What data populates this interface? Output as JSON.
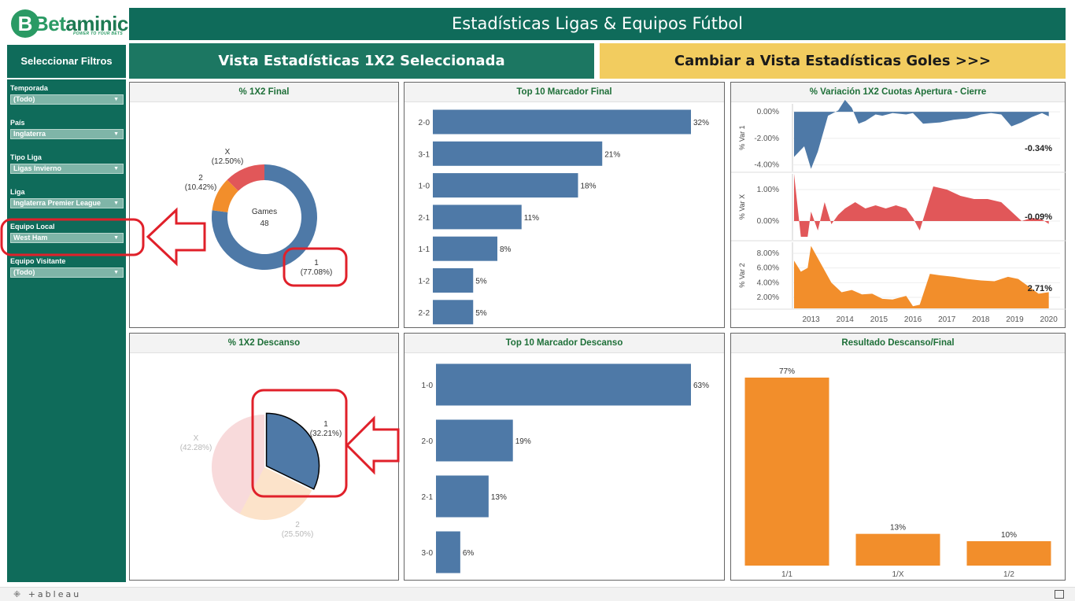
{
  "brand": {
    "name_prefix": "Bet",
    "name_suffix": "aminic",
    "tagline": "POWER TO YOUR BETS",
    "colors": {
      "primary": "#0f6b5a",
      "accent": "#f2cc5f",
      "blue": "#4e79a7",
      "orange": "#f28e2b",
      "red": "#e15759"
    }
  },
  "header": {
    "title": "Estadísticas Ligas & Equipos Fútbol"
  },
  "sidebar": {
    "heading": "Seleccionar Filtros",
    "filters": [
      {
        "label": "Temporada",
        "value": "(Todo)"
      },
      {
        "label": "País",
        "value": "Inglaterra"
      },
      {
        "label": "Tipo Liga",
        "value": "Ligas Invierno"
      },
      {
        "label": "Liga",
        "value": "Inglaterra Premier League"
      },
      {
        "label": "Equipo Local",
        "value": "West Ham"
      },
      {
        "label": "Equipo Visitante",
        "value": "(Todo)"
      }
    ]
  },
  "view_buttons": {
    "current": "Vista Estadísticas 1X2 Seleccionada",
    "switch": "Cambiar a Vista Estadísticas Goles >>>"
  },
  "panels": {
    "final_1x2_title": "% 1X2 Final",
    "top10_final_title": "Top 10 Marcador Final",
    "variation_title": "% Variación 1X2 Cuotas Apertura - Cierre",
    "halftime_1x2_title": "% 1X2 Descanso",
    "top10_halftime_title": "Top 10 Marcador Descanso",
    "ht_ft_title": "Resultado Descanso/Final"
  },
  "footer": {
    "product": "+ableau"
  },
  "chart_data": [
    {
      "id": "final_1x2",
      "type": "pie",
      "title": "% 1X2 Final",
      "center_label": "Games",
      "center_value": "48",
      "slices": [
        {
          "name": "1",
          "value": 77.08,
          "label": "(77.08%)",
          "color": "#4e79a7"
        },
        {
          "name": "2",
          "value": 10.42,
          "label": "(10.42%)",
          "color": "#f28e2b"
        },
        {
          "name": "X",
          "value": 12.5,
          "label": "(12.50%)",
          "color": "#e15759"
        }
      ]
    },
    {
      "id": "top10_final",
      "type": "bar",
      "title": "Top 10 Marcador Final",
      "categories": [
        "2-0",
        "3-1",
        "1-0",
        "2-1",
        "1-1",
        "1-2",
        "2-2"
      ],
      "values": [
        32,
        21,
        18,
        11,
        8,
        5,
        5
      ],
      "value_labels": [
        "32%",
        "21%",
        "18%",
        "11%",
        "8%",
        "5%",
        "5%"
      ],
      "xlim": [
        0,
        32
      ]
    },
    {
      "id": "variation",
      "type": "area",
      "title": "% Variación 1X2 Cuotas Apertura - Cierre",
      "x_ticks": [
        "2013",
        "2014",
        "2015",
        "2016",
        "2017",
        "2018",
        "2019",
        "2020"
      ],
      "xlim": [
        2012.5,
        2020.1
      ],
      "series": [
        {
          "name": "% Var 1",
          "color": "#4e79a7",
          "ylim": [
            -4.5,
            0.6
          ],
          "y_ticks": [
            "0.00%",
            "-2.00%",
            "-4.00%"
          ],
          "y_tick_values": [
            0,
            -2,
            -4
          ],
          "last_label": "-0.34%",
          "x": [
            2012.5,
            2012.8,
            2013.0,
            2013.2,
            2013.5,
            2013.8,
            2014.0,
            2014.2,
            2014.4,
            2014.6,
            2014.9,
            2015.1,
            2015.4,
            2015.8,
            2016.0,
            2016.3,
            2016.8,
            2017.2,
            2017.6,
            2018.0,
            2018.3,
            2018.6,
            2018.9,
            2019.2,
            2019.5,
            2019.8,
            2020.0
          ],
          "y": [
            -3.4,
            -2.6,
            -4.3,
            -3.0,
            -0.3,
            0.1,
            0.9,
            0.3,
            -0.9,
            -0.7,
            -0.2,
            -0.3,
            -0.1,
            -0.2,
            -0.1,
            -0.9,
            -0.8,
            -0.6,
            -0.5,
            -0.2,
            -0.1,
            -0.2,
            -1.1,
            -0.8,
            -0.4,
            -0.1,
            -0.34
          ]
        },
        {
          "name": "% Var X",
          "color": "#e15759",
          "ylim": [
            -0.6,
            1.5
          ],
          "y_ticks": [
            "1.00%",
            "0.00%"
          ],
          "y_tick_values": [
            1,
            0
          ],
          "last_label": "-0.09%",
          "x": [
            2012.5,
            2012.7,
            2012.9,
            2013.0,
            2013.2,
            2013.4,
            2013.6,
            2013.8,
            2014.0,
            2014.3,
            2014.6,
            2014.9,
            2015.2,
            2015.5,
            2015.8,
            2016.0,
            2016.2,
            2016.4,
            2016.6,
            2017.0,
            2017.4,
            2017.8,
            2018.2,
            2018.6,
            2018.9,
            2019.2,
            2019.5,
            2019.8,
            2020.0
          ],
          "y": [
            1.5,
            -0.5,
            -0.5,
            0.3,
            -0.3,
            0.6,
            -0.1,
            0.2,
            0.4,
            0.6,
            0.4,
            0.5,
            0.4,
            0.5,
            0.4,
            0.1,
            -0.3,
            0.4,
            1.1,
            1.0,
            0.8,
            0.7,
            0.7,
            0.6,
            0.3,
            0.0,
            0.1,
            0.05,
            -0.09
          ]
        },
        {
          "name": "% Var 2",
          "color": "#f28e2b",
          "ylim": [
            0.5,
            9.5
          ],
          "y_ticks": [
            "8.00%",
            "6.00%",
            "4.00%",
            "2.00%"
          ],
          "y_tick_values": [
            8,
            6,
            4,
            2
          ],
          "last_label": "2.71%",
          "x": [
            2012.5,
            2012.7,
            2012.9,
            2013.0,
            2013.3,
            2013.6,
            2013.9,
            2014.2,
            2014.5,
            2014.8,
            2015.1,
            2015.4,
            2015.8,
            2016.0,
            2016.2,
            2016.5,
            2016.8,
            2017.2,
            2017.6,
            2018.0,
            2018.4,
            2018.8,
            2019.1,
            2019.4,
            2019.7,
            2020.0
          ],
          "y": [
            7.0,
            5.5,
            6.0,
            9.0,
            6.5,
            4.0,
            2.7,
            3.0,
            2.4,
            2.5,
            1.8,
            1.7,
            2.2,
            0.8,
            1.0,
            5.2,
            5.0,
            4.8,
            4.5,
            4.3,
            4.2,
            4.8,
            4.5,
            3.5,
            2.5,
            2.71
          ]
        }
      ]
    },
    {
      "id": "halftime_1x2",
      "type": "pie",
      "title": "% 1X2 Descanso",
      "highlighted": "1",
      "slices": [
        {
          "name": "1",
          "value": 32.21,
          "label": "(32.21%)",
          "color": "#4e79a7"
        },
        {
          "name": "2",
          "value": 25.5,
          "label": "(25.50%)",
          "color": "#f28e2b"
        },
        {
          "name": "X",
          "value": 42.28,
          "label": "(42.28%)",
          "color": "#e15759"
        }
      ]
    },
    {
      "id": "top10_halftime",
      "type": "bar",
      "title": "Top 10 Marcador Descanso",
      "categories": [
        "1-0",
        "2-0",
        "2-1",
        "3-0"
      ],
      "values": [
        63,
        19,
        13,
        6
      ],
      "value_labels": [
        "63%",
        "19%",
        "13%",
        "6%"
      ],
      "xlim": [
        0,
        63
      ]
    },
    {
      "id": "ht_ft",
      "type": "bar",
      "title": "Resultado Descanso/Final",
      "categories": [
        "1/1",
        "1/X",
        "1/2"
      ],
      "values": [
        77,
        13,
        10
      ],
      "value_labels": [
        "77%",
        "13%",
        "10%"
      ],
      "ylim": [
        0,
        77
      ]
    }
  ]
}
